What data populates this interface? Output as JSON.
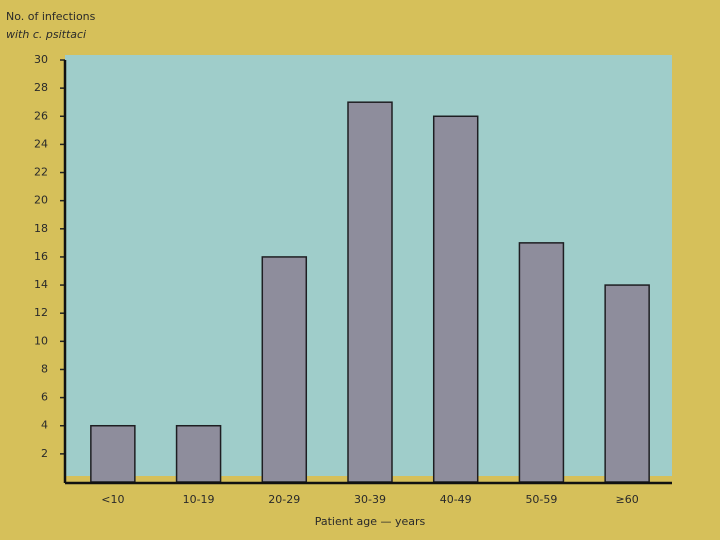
{
  "chart_data": {
    "type": "bar",
    "ylabel": [
      "No. of infections",
      "with c. psittaci"
    ],
    "xlabel": "Patient age — years",
    "categories": [
      "<10",
      "10-19",
      "20-29",
      "30-39",
      "40-49",
      "50-59",
      "≥60"
    ],
    "values": [
      4,
      4,
      16,
      27,
      26,
      17,
      14
    ],
    "color": "#8e8d9c",
    "plot_background": "#9fcdca",
    "ylim": [
      0,
      30
    ],
    "yticks": [
      2,
      4,
      6,
      8,
      10,
      12,
      14,
      16,
      18,
      20,
      22,
      24,
      26,
      28,
      30
    ],
    "grid": false
  }
}
